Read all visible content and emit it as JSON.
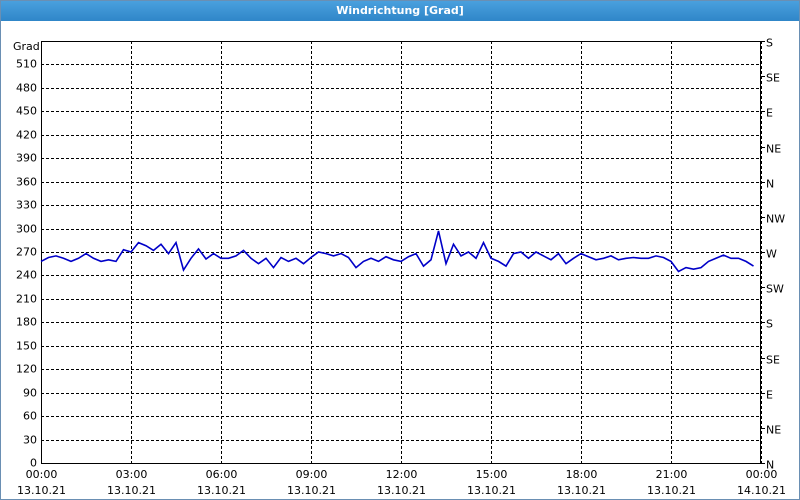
{
  "window_title": "Windrichtung [Grad]",
  "chart_data": {
    "type": "line",
    "ylabel": "Grad",
    "xlim": [
      0,
      24
    ],
    "xticks": [
      {
        "value": 0,
        "label": "00:00",
        "date": "13.10.21"
      },
      {
        "value": 3,
        "label": "03:00",
        "date": "13.10.21"
      },
      {
        "value": 6,
        "label": "06:00",
        "date": "13.10.21"
      },
      {
        "value": 9,
        "label": "09:00",
        "date": "13.10.21"
      },
      {
        "value": 12,
        "label": "12:00",
        "date": "13.10.21"
      },
      {
        "value": 15,
        "label": "15:00",
        "date": "13.10.21"
      },
      {
        "value": 18,
        "label": "18:00",
        "date": "13.10.21"
      },
      {
        "value": 21,
        "label": "21:00",
        "date": "13.10.21"
      },
      {
        "value": 24,
        "label": "00:00",
        "date": "14.10.21"
      }
    ],
    "ylim": [
      0,
      540
    ],
    "yticks": [
      0,
      30,
      60,
      90,
      120,
      150,
      180,
      210,
      240,
      270,
      300,
      330,
      360,
      390,
      420,
      450,
      480,
      510
    ],
    "y2lim": [
      0,
      540
    ],
    "y2ticks": [
      {
        "value": 0,
        "label": "N"
      },
      {
        "value": 45,
        "label": "NE"
      },
      {
        "value": 90,
        "label": "E"
      },
      {
        "value": 135,
        "label": "SE"
      },
      {
        "value": 180,
        "label": "S"
      },
      {
        "value": 225,
        "label": "SW"
      },
      {
        "value": 270,
        "label": "W"
      },
      {
        "value": 315,
        "label": "NW"
      },
      {
        "value": 360,
        "label": "N"
      },
      {
        "value": 405,
        "label": "NE"
      },
      {
        "value": 450,
        "label": "E"
      },
      {
        "value": 495,
        "label": "SE"
      },
      {
        "value": 540,
        "label": "S"
      }
    ],
    "grid": true,
    "x": [
      0,
      0.25,
      0.5,
      0.75,
      1,
      1.25,
      1.5,
      1.75,
      2,
      2.25,
      2.5,
      2.75,
      3,
      3.25,
      3.5,
      3.75,
      4,
      4.25,
      4.5,
      4.75,
      5,
      5.25,
      5.5,
      5.75,
      6,
      6.25,
      6.5,
      6.75,
      7,
      7.25,
      7.5,
      7.75,
      8,
      8.25,
      8.5,
      8.75,
      9,
      9.25,
      9.5,
      9.75,
      10,
      10.25,
      10.5,
      10.75,
      11,
      11.25,
      11.5,
      11.75,
      12,
      12.25,
      12.5,
      12.75,
      13,
      13.25,
      13.5,
      13.75,
      14,
      14.25,
      14.5,
      14.75,
      15,
      15.25,
      15.5,
      15.75,
      16,
      16.25,
      16.5,
      16.75,
      17,
      17.25,
      17.5,
      17.75,
      18,
      18.25,
      18.5,
      18.75,
      19,
      19.25,
      19.5,
      19.75,
      20,
      20.25,
      20.5,
      20.75,
      21,
      21.25,
      21.5,
      21.75,
      22,
      22.25,
      22.5,
      22.75,
      23,
      23.25,
      23.5,
      23.75
    ],
    "series": [
      {
        "color": "#0000c8",
        "values": [
          258,
          263,
          265,
          262,
          258,
          262,
          268,
          262,
          258,
          260,
          258,
          273,
          270,
          282,
          278,
          272,
          280,
          268,
          282,
          247,
          262,
          274,
          261,
          268,
          262,
          262,
          265,
          272,
          262,
          255,
          262,
          250,
          263,
          258,
          262,
          255,
          263,
          270,
          268,
          265,
          268,
          263,
          250,
          258,
          262,
          258,
          264,
          260,
          258,
          264,
          268,
          252,
          260,
          297,
          255,
          280,
          265,
          270,
          262,
          282,
          262,
          258,
          252,
          268,
          270,
          262,
          270,
          265,
          260,
          268,
          255,
          262,
          268,
          264,
          260,
          262,
          265,
          260,
          262,
          263,
          262,
          262,
          265,
          263,
          258,
          245,
          250,
          248,
          250,
          258,
          262,
          266,
          262,
          262,
          258,
          252
        ]
      }
    ]
  }
}
